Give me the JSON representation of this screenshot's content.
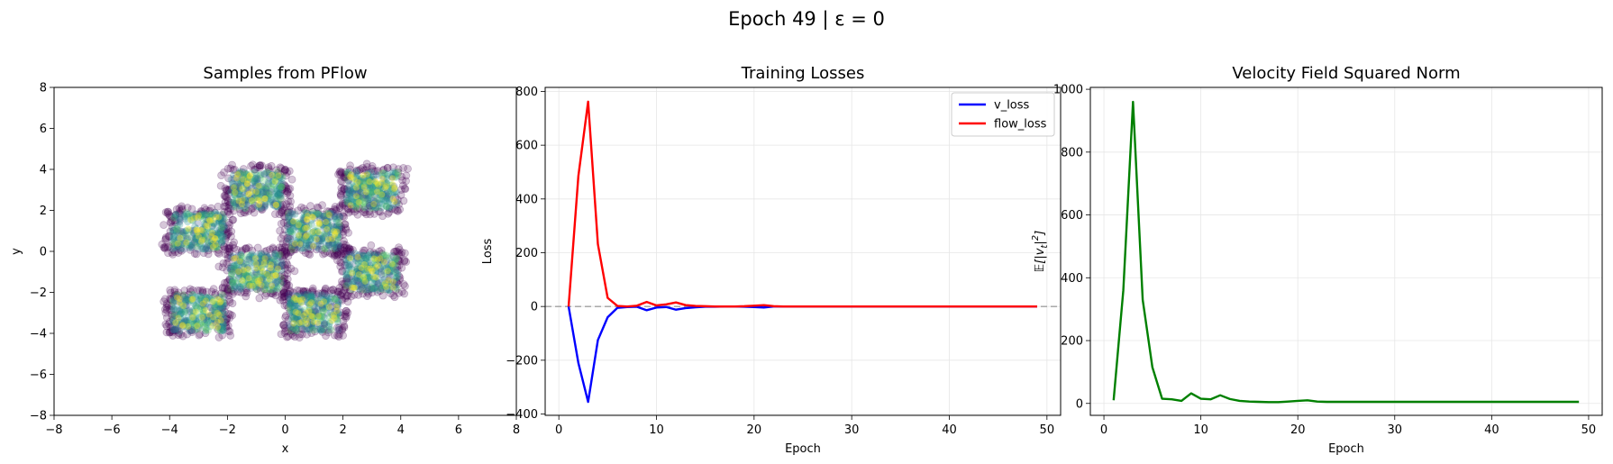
{
  "figure": {
    "suptitle": "Epoch 49 | ε = 0"
  },
  "chart_data": [
    {
      "type": "scatter",
      "title": "Samples from PFlow",
      "xlabel": "x",
      "ylabel": "y",
      "xlim": [
        -8,
        8
      ],
      "ylim": [
        -8,
        8
      ],
      "xticks": [
        -8,
        -6,
        -4,
        -2,
        0,
        2,
        4,
        6,
        8
      ],
      "yticks": [
        -8,
        -6,
        -4,
        -2,
        0,
        2,
        4,
        6,
        8
      ],
      "grid": false,
      "colormap": "viridis",
      "clusters": [
        {
          "x": [
            -4,
            -2
          ],
          "y": [
            0,
            2
          ]
        },
        {
          "x": [
            -2,
            0
          ],
          "y": [
            2,
            4
          ]
        },
        {
          "x": [
            0,
            2
          ],
          "y": [
            0,
            2
          ]
        },
        {
          "x": [
            2,
            4
          ],
          "y": [
            2,
            4
          ]
        },
        {
          "x": [
            -2,
            0
          ],
          "y": [
            -2,
            0
          ]
        },
        {
          "x": [
            2,
            4
          ],
          "y": [
            -2,
            0
          ]
        },
        {
          "x": [
            -4,
            -2
          ],
          "y": [
            -4,
            -2
          ]
        },
        {
          "x": [
            0,
            2
          ],
          "y": [
            -4,
            -2
          ]
        }
      ]
    },
    {
      "type": "line",
      "title": "Training Losses",
      "xlabel": "Epoch",
      "ylabel": "Loss",
      "xlim": [
        -1.4,
        51.4
      ],
      "ylim": [
        -405,
        815
      ],
      "xticks": [
        0,
        10,
        20,
        30,
        40,
        50
      ],
      "yticks": [
        -400,
        -200,
        0,
        200,
        400,
        600,
        800
      ],
      "grid": true,
      "reference_line": 0,
      "legend_position": "top-right",
      "x": [
        1,
        2,
        3,
        4,
        5,
        6,
        7,
        8,
        9,
        10,
        11,
        12,
        13,
        14,
        15,
        16,
        17,
        18,
        19,
        20,
        21,
        22,
        23,
        24,
        25,
        26,
        27,
        28,
        29,
        30,
        31,
        32,
        33,
        34,
        35,
        36,
        37,
        38,
        39,
        40,
        41,
        42,
        43,
        44,
        45,
        46,
        47,
        48,
        49
      ],
      "series": [
        {
          "name": "v_loss",
          "color": "#0000ff",
          "values": [
            0,
            -210,
            -355,
            -125,
            -40,
            -5,
            -2,
            -1,
            -14,
            -4,
            -2,
            -12,
            -6,
            -3,
            -1,
            -1,
            0,
            0,
            -1,
            -2,
            -4,
            0,
            0,
            0,
            0,
            0,
            0,
            0,
            0,
            0,
            0,
            0,
            0,
            0,
            0,
            0,
            0,
            0,
            0,
            0,
            0,
            0,
            0,
            0,
            0,
            0,
            0,
            0,
            0
          ]
        },
        {
          "name": "flow_loss",
          "color": "#ff0000",
          "values": [
            0,
            485,
            762,
            232,
            32,
            2,
            0,
            3,
            17,
            4,
            8,
            15,
            5,
            2,
            1,
            0,
            0,
            0,
            1,
            3,
            5,
            1,
            0,
            0,
            0,
            0,
            0,
            0,
            0,
            0,
            0,
            0,
            0,
            0,
            0,
            0,
            0,
            0,
            0,
            0,
            0,
            0,
            0,
            0,
            0,
            0,
            0,
            0,
            0
          ]
        }
      ]
    },
    {
      "type": "line",
      "title": "Velocity Field Squared Norm",
      "xlabel": "Epoch",
      "ylabel": "E[|v_t|²]",
      "ylabel_parts": {
        "main": "𝔼[|v",
        "sub": "t",
        "tail": "|",
        "sup": "2",
        "end": "]"
      },
      "xlim": [
        -1.4,
        51.4
      ],
      "ylim": [
        -38,
        1006
      ],
      "xticks": [
        0,
        10,
        20,
        30,
        40,
        50
      ],
      "yticks": [
        0,
        200,
        400,
        600,
        800,
        1000
      ],
      "grid": true,
      "x": [
        1,
        2,
        3,
        4,
        5,
        6,
        7,
        8,
        9,
        10,
        11,
        12,
        13,
        14,
        15,
        16,
        17,
        18,
        19,
        20,
        21,
        22,
        23,
        24,
        25,
        26,
        27,
        28,
        29,
        30,
        31,
        32,
        33,
        34,
        35,
        36,
        37,
        38,
        39,
        40,
        41,
        42,
        43,
        44,
        45,
        46,
        47,
        48,
        49
      ],
      "series": [
        {
          "color": "#008000",
          "values": [
            10,
            360,
            960,
            330,
            115,
            15,
            13,
            8,
            32,
            15,
            13,
            26,
            14,
            8,
            6,
            5,
            4,
            4,
            6,
            8,
            10,
            6,
            5,
            5,
            5,
            5,
            5,
            5,
            5,
            5,
            5,
            5,
            5,
            5,
            5,
            5,
            5,
            5,
            5,
            5,
            5,
            5,
            5,
            5,
            5,
            5,
            5,
            5,
            5
          ]
        }
      ]
    }
  ]
}
